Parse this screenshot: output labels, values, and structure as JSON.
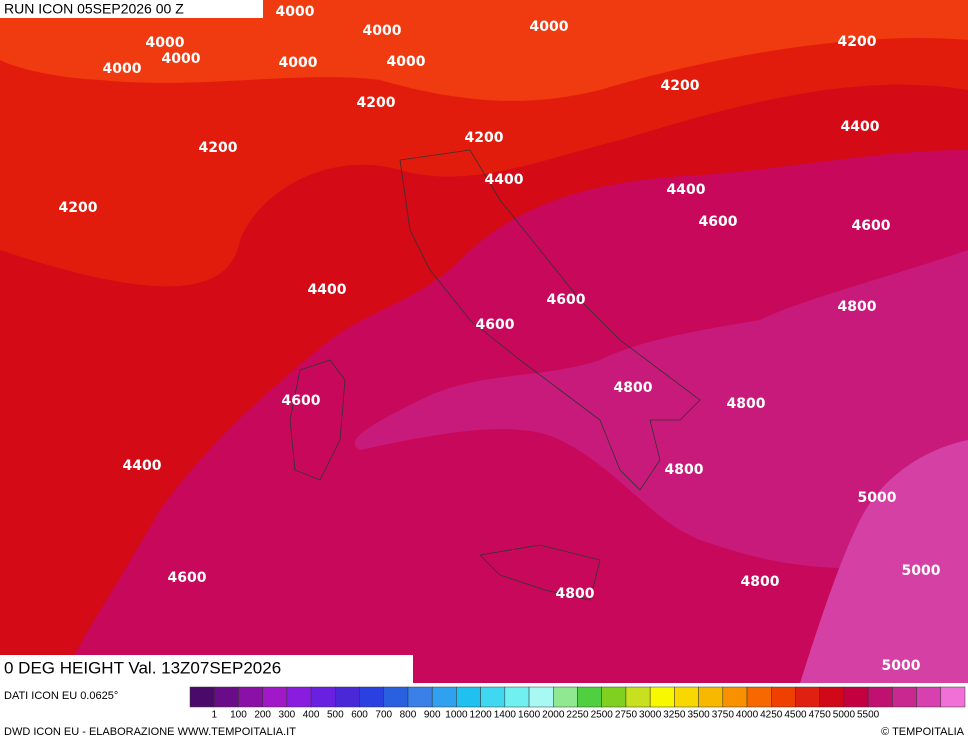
{
  "header": {
    "run": "RUN ICON 05SEP2026 00 Z"
  },
  "map": {
    "contour_labels": [
      "4000",
      "4000",
      "4000",
      "4000",
      "4000",
      "4000",
      "4000",
      "4000",
      "4200",
      "4200",
      "4200",
      "4200",
      "4200",
      "4200",
      "4400",
      "4400",
      "4400",
      "4400",
      "4400",
      "4600",
      "4600",
      "4600",
      "4600",
      "4600",
      "4600",
      "4800",
      "4800",
      "4800",
      "4800",
      "4800",
      "4800",
      "5000",
      "5000",
      "5000"
    ]
  },
  "footer": {
    "title": "0 DEG HEIGHT Val. 13Z07SEP2026",
    "source": "DATI ICON EU 0.0625°",
    "credit": "DWD ICON EU - ELABORAZIONE WWW.TEMPOITALIA.IT",
    "copyright": "© TEMPOITALIA"
  },
  "legend": {
    "colors": [
      "#4a0a6a",
      "#6a0c8a",
      "#8a10a8",
      "#a018c8",
      "#8a1ce0",
      "#6a20e0",
      "#4a28d8",
      "#2a40e0",
      "#2860e0",
      "#3a80e8",
      "#30a0f0",
      "#20c0f0",
      "#40d8f0",
      "#70f0f0",
      "#a8f8f4",
      "#90e890",
      "#50d040",
      "#80d020",
      "#c8e020",
      "#f8f800",
      "#f8d800",
      "#f8b800",
      "#f89000",
      "#f86800",
      "#f04000",
      "#e02010",
      "#d00818",
      "#c40040",
      "#c01070",
      "#c82890",
      "#d840b0",
      "#f070d8"
    ],
    "labels": [
      "1",
      "100",
      "200",
      "300",
      "400",
      "500",
      "600",
      "700",
      "800",
      "900",
      "1000",
      "1200",
      "1400",
      "1600",
      "2000",
      "2250",
      "2500",
      "2750",
      "3000",
      "3250",
      "3500",
      "3750",
      "4000",
      "4250",
      "4500",
      "4750",
      "5000",
      "5500"
    ]
  }
}
